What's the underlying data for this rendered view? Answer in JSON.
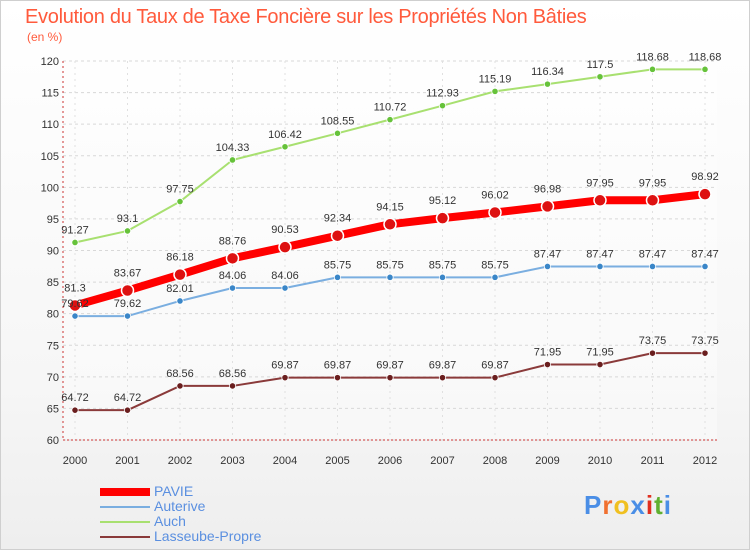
{
  "title": "Evolution du Taux de Taxe Foncière sur les Propriétés Non Bâties",
  "subtitle": "(en %)",
  "logo": {
    "text": "Proxiti",
    "colors": [
      "#4a8ee6",
      "#f07030",
      "#f0c020",
      "#4a8ee6",
      "#e03020",
      "#60b030",
      "#4a8ee6"
    ]
  },
  "chart_data": {
    "type": "line",
    "title": "Evolution du Taux de Taxe Foncière sur les Propriétés Non Bâties",
    "ylabel": "(en %)",
    "xlabel": "",
    "x": [
      "2000",
      "2001",
      "2002",
      "2003",
      "2004",
      "2005",
      "2006",
      "2007",
      "2008",
      "2009",
      "2010",
      "2011",
      "2012"
    ],
    "ylim": [
      60,
      120
    ],
    "yticks": [
      60,
      65,
      70,
      75,
      80,
      85,
      90,
      95,
      100,
      105,
      110,
      115,
      120
    ],
    "grid": "horizontal",
    "legend_position": "bottom-left",
    "series": [
      {
        "name": "PAVIE",
        "color": "#ff0000",
        "marker": "#dd1111",
        "width": 8,
        "radius": 6,
        "values": [
          81.3,
          83.67,
          86.18,
          88.76,
          90.53,
          92.34,
          94.15,
          95.12,
          96.02,
          96.98,
          97.95,
          97.95,
          98.92
        ],
        "labels": [
          "81.3",
          "83.67",
          "86.18",
          "88.76",
          "90.53",
          "92.34",
          "94.15",
          "95.12",
          "96.02",
          "96.98",
          "97.95",
          "97.95",
          "98.92"
        ]
      },
      {
        "name": "Auterive",
        "color": "#7aaee0",
        "marker": "#3a86c8",
        "width": 2,
        "radius": 3.2,
        "values": [
          79.62,
          79.62,
          82.01,
          84.06,
          84.06,
          85.75,
          85.75,
          85.75,
          85.75,
          87.47,
          87.47,
          87.47,
          87.47
        ],
        "labels": [
          "79.62",
          "79.62",
          "82.01",
          "84.06",
          "84.06",
          "85.75",
          "85.75",
          "85.75",
          "85.75",
          "87.47",
          "87.47",
          "87.47",
          "87.47"
        ]
      },
      {
        "name": "Auch",
        "color": "#a8e070",
        "marker": "#66c23a",
        "width": 2,
        "radius": 3.2,
        "values": [
          91.27,
          93.1,
          97.75,
          104.33,
          106.42,
          108.55,
          110.72,
          112.93,
          115.19,
          116.34,
          117.5,
          118.68,
          118.68
        ],
        "labels": [
          "91.27",
          "93.1",
          "97.75",
          "104.33",
          "106.42",
          "108.55",
          "110.72",
          "112.93",
          "115.19",
          "116.34",
          "117.5",
          "118.68",
          "118.68"
        ]
      },
      {
        "name": "Lasseube-Propre",
        "color": "#8a3a3a",
        "marker": "#6a1e1e",
        "width": 2,
        "radius": 3.2,
        "values": [
          64.72,
          64.72,
          68.56,
          68.56,
          69.87,
          69.87,
          69.87,
          69.87,
          69.87,
          71.95,
          71.95,
          73.75,
          73.75
        ],
        "labels": [
          "64.72",
          "64.72",
          "68.56",
          "68.56",
          "69.87",
          "69.87",
          "69.87",
          "69.87",
          "69.87",
          "71.95",
          "71.95",
          "73.75",
          "73.75"
        ]
      }
    ]
  }
}
